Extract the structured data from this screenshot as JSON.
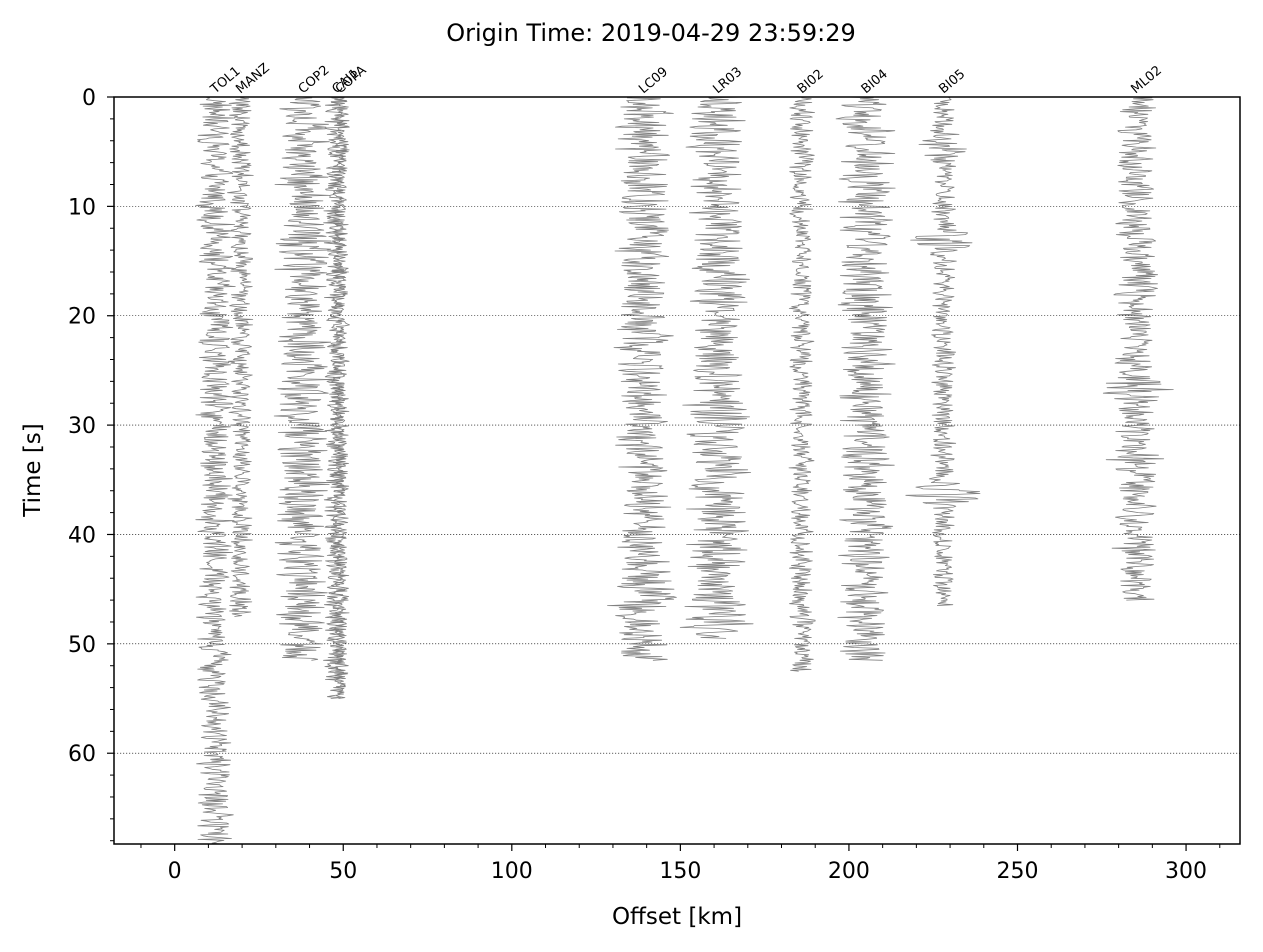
{
  "chart_data": {
    "type": "line",
    "title": "Origin Time: 2019-04-29 23:59:29",
    "xlabel": "Offset [km]",
    "ylabel": "Time [s]",
    "xlim": [
      -18,
      316
    ],
    "ylim": [
      68.3,
      0
    ],
    "y_inverted": true,
    "x_ticks": [
      0,
      50,
      100,
      150,
      200,
      250,
      300
    ],
    "y_ticks": [
      0,
      10,
      20,
      30,
      40,
      50,
      60
    ],
    "grid": "horizontal dotted at y ticks",
    "trace_color": "#808080",
    "series": [
      {
        "name": "TOL1",
        "offset_km": 12,
        "duration_s": 68.3,
        "amplitude_km": 6,
        "bursts": []
      },
      {
        "name": "MANZ",
        "offset_km": 19.5,
        "duration_s": 47.5,
        "amplitude_km": 4,
        "bursts": []
      },
      {
        "name": "COP2",
        "offset_km": 38,
        "duration_s": 51.5,
        "amplitude_km": 9,
        "bursts": []
      },
      {
        "name": "CAI1",
        "offset_km": 48,
        "duration_s": 55,
        "amplitude_km": 4,
        "bursts": []
      },
      {
        "name": "COPA",
        "offset_km": 49,
        "duration_s": 55,
        "amplitude_km": 3,
        "bursts": []
      },
      {
        "name": "LC09",
        "offset_km": 139,
        "duration_s": 51.5,
        "amplitude_km": 9,
        "bursts": [
          {
            "t": 46,
            "gain": 1.6
          }
        ]
      },
      {
        "name": "LR03",
        "offset_km": 161,
        "duration_s": 49.5,
        "amplitude_km": 10,
        "bursts": [
          {
            "t": 29,
            "gain": 1.5
          },
          {
            "t": 42,
            "gain": 1.4
          },
          {
            "t": 49,
            "gain": 1.6
          }
        ]
      },
      {
        "name": "BI02",
        "offset_km": 186,
        "duration_s": 52.5,
        "amplitude_km": 4,
        "bursts": []
      },
      {
        "name": "BI04",
        "offset_km": 205,
        "duration_s": 51.5,
        "amplitude_km": 9,
        "bursts": [
          {
            "t": 23,
            "gain": 1.4
          }
        ]
      },
      {
        "name": "BI05",
        "offset_km": 228,
        "duration_s": 46.5,
        "amplitude_km": 4,
        "bursts": [
          {
            "t": 4.5,
            "gain": 2.2
          },
          {
            "t": 13,
            "gain": 4.2
          },
          {
            "t": 36.5,
            "gain": 3.8
          }
        ]
      },
      {
        "name": "ML02",
        "offset_km": 285,
        "duration_s": 46,
        "amplitude_km": 7,
        "bursts": [
          {
            "t": 17,
            "gain": 1.6
          },
          {
            "t": 26.5,
            "gain": 2.0
          },
          {
            "t": 33.5,
            "gain": 1.5
          }
        ]
      }
    ]
  }
}
